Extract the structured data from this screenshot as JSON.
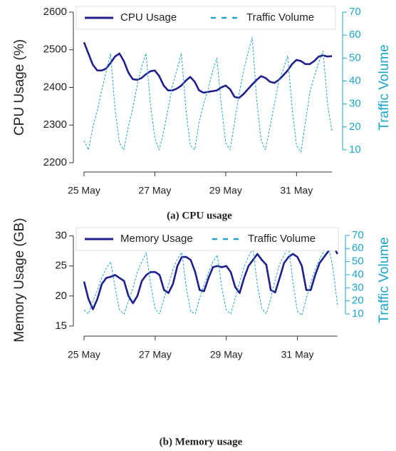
{
  "chart_data": [
    {
      "type": "line",
      "caption": "(a) CPU usage",
      "y_label": "CPU Usage (%)",
      "y2_label": "Traffic Volume",
      "x": [
        25,
        25.125,
        25.25,
        25.375,
        25.5,
        25.625,
        25.75,
        25.875,
        26,
        26.125,
        26.25,
        26.375,
        26.5,
        26.625,
        26.75,
        26.875,
        27,
        27.125,
        27.25,
        27.375,
        27.5,
        27.625,
        27.75,
        27.875,
        28,
        28.125,
        28.25,
        28.375,
        28.5,
        28.625,
        28.75,
        28.875,
        29,
        29.125,
        29.25,
        29.375,
        29.5,
        29.625,
        29.75,
        29.875,
        30,
        30.125,
        30.25,
        30.375,
        30.5,
        30.625,
        30.75,
        30.875,
        31,
        31.125,
        31.25,
        31.375,
        31.5,
        31.625,
        31.75,
        31.875,
        32
      ],
      "xlim": [
        24.7,
        32.3
      ],
      "xticks": [
        {
          "value": 25,
          "label": "25 May"
        },
        {
          "value": 27,
          "label": "27 May"
        },
        {
          "value": 29,
          "label": "29 May"
        },
        {
          "value": 31,
          "label": "31 May"
        }
      ],
      "ylim": [
        2183,
        2617
      ],
      "yticks": [
        2200,
        2300,
        2400,
        2500,
        2600
      ],
      "y2lim": [
        1.6,
        72.8
      ],
      "y2ticks": [
        10,
        20,
        30,
        40,
        50,
        60,
        70
      ],
      "y2_color": "#1ba5c8",
      "legend": "top",
      "series": [
        {
          "name": "CPU Usage",
          "color": "#1f1f8c",
          "linestyle": "solid",
          "values": [
            2520,
            2490,
            2460,
            2445,
            2445,
            2450,
            2465,
            2482,
            2490,
            2470,
            2440,
            2422,
            2420,
            2425,
            2435,
            2443,
            2445,
            2430,
            2405,
            2392,
            2392,
            2397,
            2405,
            2418,
            2428,
            2415,
            2392,
            2386,
            2388,
            2390,
            2392,
            2400,
            2405,
            2395,
            2375,
            2372,
            2382,
            2395,
            2408,
            2420,
            2430,
            2425,
            2415,
            2412,
            2420,
            2432,
            2445,
            2462,
            2473,
            2470,
            2462,
            2462,
            2470,
            2482,
            2485,
            2482,
            2483
          ]
        },
        {
          "name": "Traffic Volume",
          "color": "#1ba5c8",
          "linestyle": "dashed",
          "axis": "y2",
          "values": [
            14,
            10,
            20,
            27,
            36,
            44,
            52,
            28,
            13,
            10,
            20,
            28,
            38,
            46,
            52,
            30,
            15,
            10,
            18,
            28,
            38,
            45,
            52,
            28,
            12,
            10,
            22,
            30,
            36,
            44,
            50,
            30,
            13,
            10,
            22,
            34,
            44,
            52,
            59,
            32,
            14,
            10,
            20,
            30,
            40,
            45,
            51,
            28,
            12,
            9,
            22,
            35,
            42,
            48,
            53,
            30,
            18
          ]
        }
      ]
    },
    {
      "type": "line",
      "caption": "(b) Memory usage",
      "y_label": "Memory Usage (GB)",
      "y2_label": "Traffic Volume",
      "x": [
        25,
        25.125,
        25.25,
        25.375,
        25.5,
        25.625,
        25.75,
        25.875,
        26,
        26.125,
        26.25,
        26.375,
        26.5,
        26.625,
        26.75,
        26.875,
        27,
        27.125,
        27.25,
        27.375,
        27.5,
        27.625,
        27.75,
        27.875,
        28,
        28.125,
        28.25,
        28.375,
        28.5,
        28.625,
        28.75,
        28.875,
        29,
        29.125,
        29.25,
        29.375,
        29.5,
        29.625,
        29.75,
        29.875,
        30,
        30.125,
        30.25,
        30.375,
        30.5,
        30.625,
        30.75,
        30.875,
        31,
        31.125,
        31.25,
        31.375,
        31.5,
        31.625,
        31.75,
        31.875,
        32,
        32.125
      ],
      "xlim": [
        24.7,
        32.35
      ],
      "xticks": [
        {
          "value": 25,
          "label": "25 May"
        },
        {
          "value": 27,
          "label": "27 May"
        },
        {
          "value": 29,
          "label": "29 May"
        },
        {
          "value": 31,
          "label": "31 May"
        }
      ],
      "ylim": [
        13.8,
        31.5
      ],
      "yticks": [
        15,
        20,
        25,
        30
      ],
      "y2lim": [
        -4.7,
        76.5
      ],
      "y2ticks": [
        10,
        20,
        30,
        40,
        50,
        60,
        70
      ],
      "y2_color": "#1ba5c8",
      "legend": "top",
      "series": [
        {
          "name": "Memory Usage",
          "color": "#1f1f8c",
          "linestyle": "solid",
          "values": [
            22.4,
            19.5,
            17.8,
            19.5,
            22,
            23,
            23.2,
            23.5,
            23,
            22.5,
            20,
            18.8,
            20,
            22.5,
            23.5,
            24,
            24,
            23.5,
            21,
            20.5,
            22,
            25,
            26.5,
            26.5,
            26,
            24,
            21,
            20.8,
            23,
            24.8,
            25,
            24.8,
            25,
            24,
            21.5,
            20.5,
            23,
            25,
            26,
            27,
            26,
            25.2,
            21,
            20.6,
            23,
            25.5,
            26.5,
            27,
            26.5,
            25,
            21,
            21,
            23.5,
            25.5,
            26.5,
            27.5,
            28.5,
            27
          ]
        },
        {
          "name": "Traffic Volume",
          "color": "#1ba5c8",
          "linestyle": "dashed",
          "axis": "y2",
          "values": [
            13,
            10,
            20,
            28,
            38,
            45,
            50,
            30,
            13,
            10,
            20,
            30,
            42,
            50,
            57,
            32,
            14,
            10,
            22,
            32,
            44,
            52,
            57,
            30,
            12,
            10,
            22,
            32,
            42,
            50,
            55,
            30,
            13,
            10,
            22,
            34,
            46,
            54,
            60,
            32,
            14,
            10,
            22,
            36,
            48,
            55,
            62,
            34,
            12,
            9,
            22,
            34,
            44,
            52,
            58,
            62,
            45,
            17
          ]
        }
      ]
    }
  ]
}
